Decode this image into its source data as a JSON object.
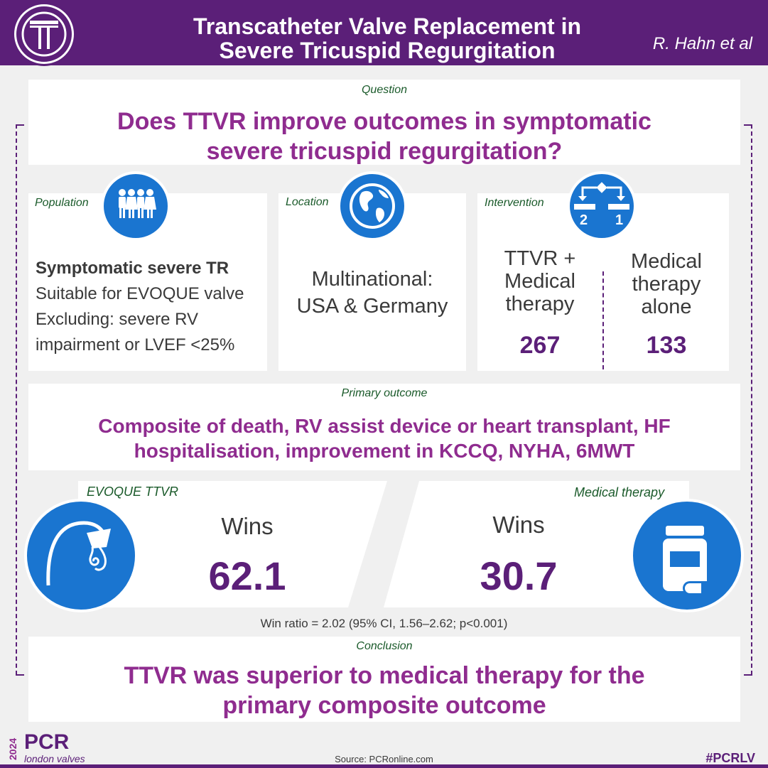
{
  "header": {
    "title_line1": "Transcatheter Valve Replacement in",
    "title_line2": "Severe Tricuspid Regurgitation",
    "author": "R. Hahn et al",
    "logo_icon": "letter-t-logo-icon"
  },
  "question": {
    "label": "Question",
    "line1": "Does TTVR improve outcomes in symptomatic",
    "line2": "severe tricuspid regurgitation?"
  },
  "population": {
    "label": "Population",
    "icon": "people-group-icon",
    "heading": "Symptomatic severe TR",
    "line1": "Suitable for EVOQUE valve",
    "line2": "Excluding: severe RV",
    "line3": "impairment or LVEF <25%"
  },
  "location": {
    "label": "Location",
    "icon": "globe-icon",
    "line1": "Multinational:",
    "line2": "USA & Germany"
  },
  "intervention": {
    "label": "Intervention",
    "icon": "randomization-icon",
    "icon_num_left": "2",
    "icon_num_right": "1",
    "arm1_line1": "TTVR +",
    "arm1_line2": "Medical",
    "arm1_line3": "therapy",
    "arm1_n": "267",
    "arm2_line1": "Medical",
    "arm2_line2": "therapy",
    "arm2_line3": "alone",
    "arm2_n": "133"
  },
  "primary_outcome": {
    "label": "Primary outcome",
    "line1": "Composite of death, RV assist device or heart transplant, HF",
    "line2": "hospitalisation, improvement in KCCQ, NYHA, 6MWT"
  },
  "results": {
    "left_label": "EVOQUE TTVR",
    "left_icon": "heart-valve-icon",
    "left_wins_label": "Wins",
    "left_value": "62.1",
    "right_label": "Medical therapy",
    "right_icon": "pill-bottle-icon",
    "right_wins_label": "Wins",
    "right_value": "30.7",
    "win_ratio": "Win ratio = 2.02 (95% CI, 1.56–2.62; p<0.001)"
  },
  "conclusion": {
    "label": "Conclusion",
    "line1": "TTVR was superior to medical therapy for the",
    "line2": "primary composite outcome"
  },
  "footer": {
    "year": "2024",
    "brand": "PCR",
    "brand_sub": "london valves",
    "source": "Source: PCRonline.com",
    "hashtag": "#PCRLV"
  },
  "colors": {
    "purple": "#5b1f78",
    "magenta": "#8f2c8f",
    "blue": "#1a75d0",
    "green": "#1a5a2a"
  }
}
